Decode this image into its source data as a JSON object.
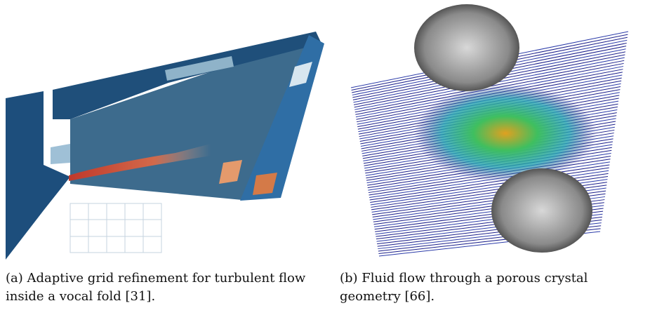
{
  "figure": {
    "panels": [
      {
        "caption": "(a) Adaptive grid refinement for turbulent flow inside a vocal fold [31]."
      },
      {
        "caption": "(b) Fluid flow through a porous crystal geometry [66]."
      }
    ]
  }
}
